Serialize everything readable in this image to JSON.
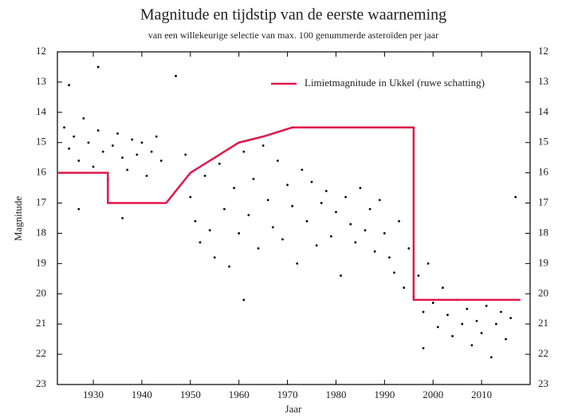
{
  "chart_data": {
    "type": "scatter",
    "title": "Magnitude en tijdstip van de eerste waarneming",
    "subtitle": "van een willekeurige selectie van max. 100 genummerde asteroïden per jaar",
    "x_label": "Jaar",
    "y_label": "Magnitude",
    "xlim": [
      1922.6,
      2020
    ],
    "xticks": [
      1930,
      1940,
      1950,
      1960,
      1970,
      1980,
      1990,
      2000,
      2010
    ],
    "ylim": [
      23,
      12
    ],
    "yticks": [
      12,
      13,
      14,
      15,
      16,
      17,
      18,
      19,
      20,
      21,
      22,
      23
    ],
    "y2lim": [
      23,
      12
    ],
    "y2ticks": [
      12,
      13,
      14,
      15,
      16,
      17,
      18,
      19,
      20,
      21,
      22,
      23
    ],
    "legend_position": "upper right",
    "points": {
      "color": "#000000",
      "x": [
        1924,
        1925,
        1926,
        1927,
        1928,
        1929,
        1930,
        1931,
        1932,
        1933,
        1934,
        1935,
        1936,
        1937,
        1938,
        1939,
        1940,
        1941,
        1942,
        1943,
        1944,
        1925,
        1931,
        1927,
        1936,
        1949,
        1950,
        1951,
        1952,
        1953,
        1954,
        1955,
        1956,
        1957,
        1958,
        1959,
        1960,
        1961,
        1961,
        1962,
        1963,
        1964,
        1965,
        1966,
        1967,
        1968,
        1969,
        1970,
        1971,
        1972,
        1973,
        1974,
        1975,
        1976,
        1977,
        1978,
        1979,
        1980,
        1981,
        1982,
        1983,
        1984,
        1985,
        1986,
        1987,
        1988,
        1989,
        1990,
        1991,
        1992,
        1993,
        1994,
        1995,
        1996,
        1997,
        1998,
        1999,
        2000,
        2001,
        2002,
        2003,
        2004,
        2005,
        2006,
        2007,
        2008,
        2009,
        2010,
        2011,
        2012,
        2013,
        2014,
        2015,
        2016,
        1947,
        1998,
        2017
      ],
      "y": [
        14.5,
        15.2,
        14.8,
        15.6,
        14.2,
        15.0,
        15.8,
        14.6,
        15.3,
        16.2,
        15.1,
        14.7,
        15.5,
        15.9,
        14.9,
        15.4,
        15.0,
        16.1,
        15.3,
        14.8,
        15.6,
        13.1,
        12.5,
        17.2,
        17.5,
        15.4,
        16.8,
        17.6,
        18.3,
        16.1,
        17.9,
        18.8,
        15.7,
        17.2,
        19.1,
        16.5,
        18.0,
        20.2,
        15.3,
        17.4,
        16.2,
        18.5,
        15.1,
        16.9,
        17.8,
        15.6,
        18.2,
        16.4,
        17.1,
        19.0,
        15.9,
        17.6,
        16.3,
        18.4,
        17.0,
        16.6,
        18.1,
        17.3,
        19.4,
        16.8,
        17.7,
        18.3,
        16.5,
        17.9,
        17.2,
        18.6,
        16.9,
        18.0,
        18.8,
        19.3,
        17.6,
        19.8,
        18.5,
        20.1,
        19.4,
        20.6,
        19.0,
        20.3,
        21.1,
        19.8,
        20.7,
        21.4,
        20.2,
        21.0,
        20.5,
        21.7,
        20.9,
        21.3,
        20.4,
        22.1,
        21.0,
        20.6,
        21.5,
        20.8,
        12.8,
        21.8,
        16.8
      ]
    },
    "series": [
      {
        "name": "Limietmagnitude in Ukkel (ruwe schatting)",
        "color": "#e0174a",
        "x": [
          1922.6,
          1933,
          1933,
          1945,
          1950,
          1955,
          1960,
          1965,
          1971,
          1996,
          1996,
          2018
        ],
        "values": [
          16,
          16,
          17,
          17,
          16,
          15.5,
          15,
          14.8,
          14.5,
          14.5,
          20.2,
          20.2
        ]
      }
    ]
  }
}
